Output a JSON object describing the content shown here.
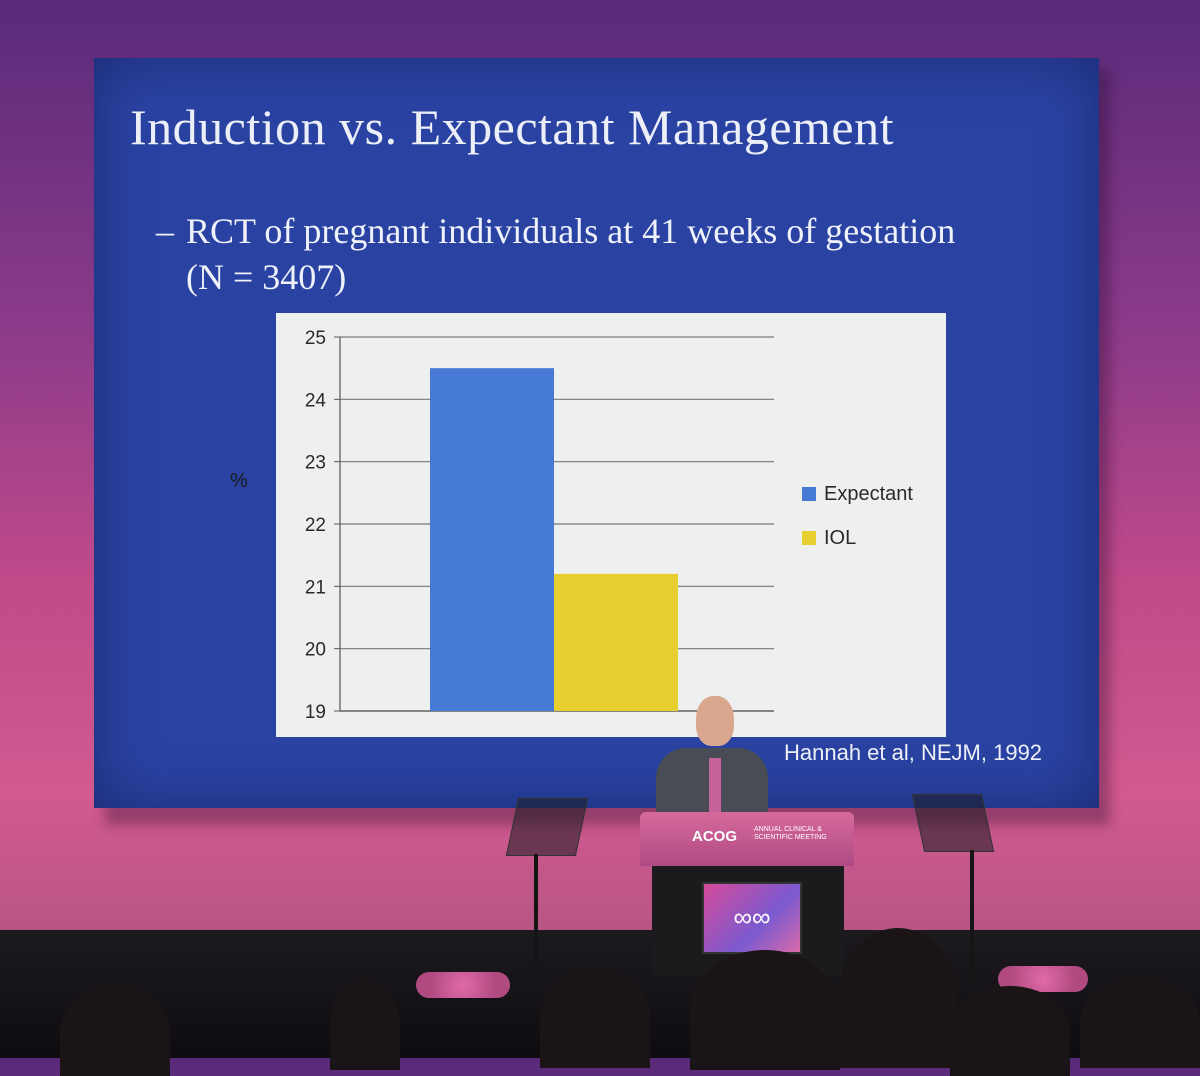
{
  "slide": {
    "title": "Induction vs. Expectant Management",
    "bullet_dash": "–",
    "bullet": "RCT of pregnant individuals  at 41 weeks of gestation (N = 3407)",
    "citation": "Hannah et al, NEJM, 1992"
  },
  "podium": {
    "brand": "ACOG",
    "subtitle": "ANNUAL CLINICAL & SCIENTIFIC MEETING"
  },
  "colors": {
    "slide_background": "#2a43a3",
    "expectant": "#4779d6",
    "iol": "#e6cf2e"
  },
  "chart_data": {
    "type": "bar",
    "categories": [
      ""
    ],
    "series": [
      {
        "name": "Expectant",
        "values": [
          24.5
        ]
      },
      {
        "name": "IOL",
        "values": [
          21.2
        ]
      }
    ],
    "title": "",
    "xlabel": "",
    "ylabel": "%",
    "ylim": [
      19,
      25
    ],
    "yticks": [
      19,
      20,
      21,
      22,
      23,
      24,
      25
    ],
    "grid": true,
    "legend": "right"
  }
}
